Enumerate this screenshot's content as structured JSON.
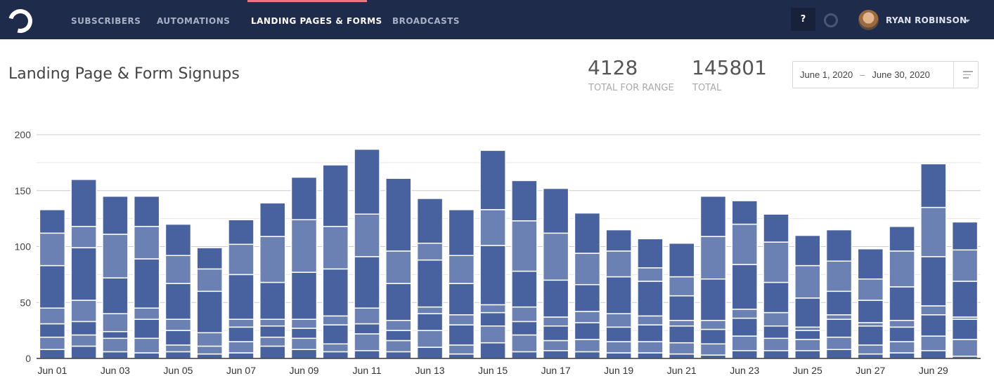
{
  "nav": {
    "items": [
      "SUBSCRIBERS",
      "AUTOMATIONS",
      "LANDING PAGES & FORMS",
      "BROADCASTS"
    ],
    "active": "LANDING PAGES & FORMS",
    "help": "?",
    "user": "RYAN ROBINSON"
  },
  "page": {
    "title": "Landing Page & Form Signups"
  },
  "stats": {
    "range_total": "4128",
    "range_label": "TOTAL FOR RANGE",
    "total": "145801",
    "total_label": "TOTAL"
  },
  "date_range": {
    "start": "June 1, 2020",
    "separator": "–",
    "end": "June 30, 2020"
  },
  "colors": {
    "nav_bg": "#1f2b4b",
    "series_dark": "#4862a0",
    "series_light": "#6b81b3",
    "active_tab": "#e9787f"
  },
  "chart_data": {
    "type": "bar",
    "stacked": true,
    "ylim": [
      0,
      200
    ],
    "yticks": [
      0,
      50,
      100,
      150,
      200
    ],
    "grid": true,
    "categories": [
      "Jun 01",
      "Jun 02",
      "Jun 03",
      "Jun 04",
      "Jun 05",
      "Jun 06",
      "Jun 07",
      "Jun 08",
      "Jun 09",
      "Jun 10",
      "Jun 11",
      "Jun 12",
      "Jun 13",
      "Jun 14",
      "Jun 15",
      "Jun 16",
      "Jun 17",
      "Jun 18",
      "Jun 19",
      "Jun 20",
      "Jun 21",
      "Jun 22",
      "Jun 23",
      "Jun 24",
      "Jun 25",
      "Jun 26",
      "Jun 27",
      "Jun 28",
      "Jun 29",
      "Jun 30"
    ],
    "xtick_labels": [
      "Jun 01",
      "Jun 03",
      "Jun 05",
      "Jun 07",
      "Jun 09",
      "Jun 11",
      "Jun 13",
      "Jun 15",
      "Jun 17",
      "Jun 19",
      "Jun 21",
      "Jun 23",
      "Jun 25",
      "Jun 27",
      "Jun 29"
    ],
    "series": [
      {
        "shade": "dark",
        "values": [
          8,
          11,
          6,
          5,
          6,
          4,
          5,
          11,
          8,
          6,
          7,
          6,
          10,
          4,
          14,
          6,
          7,
          6,
          5,
          5,
          4,
          3,
          7,
          7,
          7,
          8,
          4,
          5,
          7,
          2
        ]
      },
      {
        "shade": "light",
        "values": [
          11,
          10,
          12,
          13,
          6,
          7,
          10,
          8,
          10,
          7,
          15,
          10,
          15,
          8,
          15,
          15,
          9,
          11,
          10,
          10,
          10,
          10,
          13,
          11,
          10,
          11,
          8,
          10,
          13,
          15
        ]
      },
      {
        "shade": "dark",
        "values": [
          12,
          12,
          6,
          17,
          13,
          0,
          13,
          10,
          9,
          17,
          9,
          9,
          15,
          18,
          12,
          12,
          13,
          15,
          13,
          15,
          15,
          13,
          16,
          11,
          8,
          16,
          17,
          13,
          19,
          18
        ]
      },
      {
        "shade": "light",
        "values": [
          14,
          19,
          16,
          10,
          10,
          12,
          7,
          6,
          8,
          8,
          14,
          9,
          6,
          9,
          7,
          13,
          8,
          10,
          12,
          8,
          5,
          8,
          8,
          12,
          3,
          4,
          3,
          6,
          8,
          2
        ]
      },
      {
        "shade": "dark",
        "values": [
          38,
          47,
          32,
          44,
          32,
          37,
          40,
          33,
          42,
          42,
          46,
          33,
          42,
          28,
          53,
          32,
          33,
          24,
          33,
          31,
          22,
          37,
          40,
          27,
          26,
          21,
          20,
          30,
          44,
          32
        ]
      },
      {
        "shade": "light",
        "values": [
          29,
          19,
          39,
          29,
          25,
          20,
          27,
          41,
          47,
          38,
          38,
          29,
          15,
          25,
          32,
          45,
          42,
          28,
          23,
          12,
          17,
          38,
          36,
          36,
          29,
          27,
          19,
          32,
          44,
          28
        ]
      },
      {
        "shade": "dark",
        "values": [
          21,
          42,
          34,
          27,
          28,
          19,
          22,
          30,
          38,
          55,
          58,
          65,
          40,
          41,
          53,
          36,
          40,
          36,
          19,
          26,
          30,
          36,
          21,
          25,
          27,
          28,
          27,
          22,
          39,
          25
        ]
      }
    ]
  }
}
